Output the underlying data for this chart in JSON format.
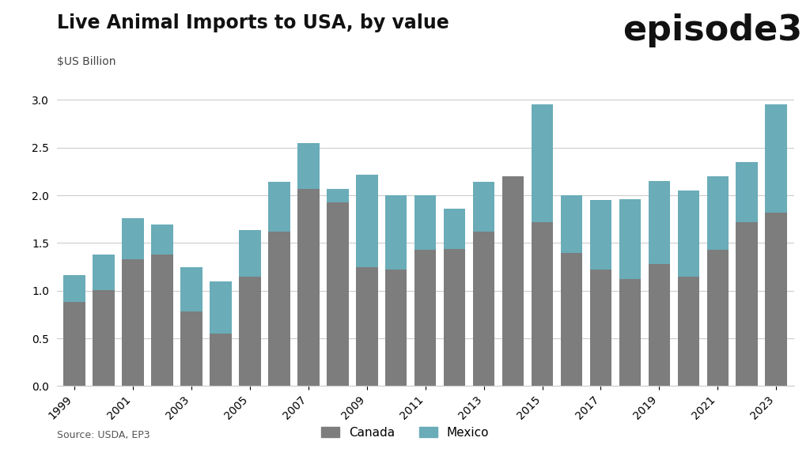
{
  "title": "Live Animal Imports to USA, by value",
  "subtitle": "$US Billion",
  "source": "Source: USDA, EP3",
  "logo_text": "episode3",
  "years": [
    1999,
    2000,
    2001,
    2002,
    2003,
    2004,
    2005,
    2006,
    2007,
    2008,
    2009,
    2010,
    2011,
    2012,
    2013,
    2014,
    2015,
    2016,
    2017,
    2018,
    2019,
    2020,
    2021,
    2022,
    2023
  ],
  "canada": [
    0.88,
    1.01,
    1.33,
    1.38,
    0.78,
    0.55,
    1.15,
    1.62,
    2.07,
    1.93,
    1.25,
    1.22,
    1.43,
    1.44,
    1.62,
    2.2,
    1.72,
    1.4,
    1.22,
    1.12,
    1.28,
    1.15,
    1.43,
    1.72,
    1.82
  ],
  "mexico": [
    0.28,
    0.37,
    0.43,
    0.31,
    0.47,
    0.55,
    0.49,
    0.52,
    0.48,
    0.14,
    0.97,
    0.78,
    0.57,
    0.42,
    0.52,
    0.0,
    1.23,
    0.6,
    0.73,
    0.84,
    0.87,
    0.9,
    0.77,
    0.63,
    1.13
  ],
  "canada_color": "#7d7d7d",
  "mexico_color": "#6aacb8",
  "background_color": "#ffffff",
  "grid_color": "#cccccc",
  "ylim": [
    0.0,
    3.2
  ],
  "yticks": [
    0.0,
    0.5,
    1.0,
    1.5,
    2.0,
    2.5,
    3.0
  ],
  "bar_width": 0.75,
  "title_fontsize": 17,
  "subtitle_fontsize": 10,
  "tick_fontsize": 10,
  "legend_fontsize": 11,
  "source_fontsize": 9,
  "logo_fontsize": 32
}
